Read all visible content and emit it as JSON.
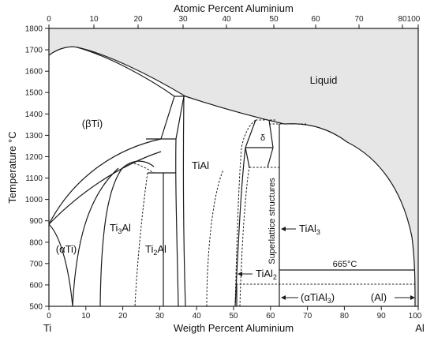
{
  "top_axis": {
    "title": "Atomic Percent Aluminium",
    "ticks": [
      "0",
      "10",
      "20",
      "30",
      "40",
      "50",
      "60",
      "70",
      "80",
      "90",
      "100"
    ]
  },
  "bottom_axis": {
    "title": "Weigth Percent Aluminium",
    "ticks": [
      "0",
      "10",
      "20",
      "30",
      "40",
      "50",
      "60",
      "70",
      "80",
      "90",
      "100"
    ],
    "end_left": "Ti",
    "end_right": "Al"
  },
  "left_axis": {
    "title": "Temperature °C",
    "ticks": [
      "500",
      "600",
      "700",
      "800",
      "900",
      "1000",
      "1100",
      "1200",
      "1300",
      "1400",
      "1500",
      "1600",
      "1700",
      "1800"
    ]
  },
  "labels": {
    "liquid": "Liquid",
    "beta_ti": "(βTi)",
    "alpha_ti": "(αTi)",
    "ti3al_main": "Ti",
    "ti3al_sub": "3",
    "ti3al_tail": "Al",
    "ti2al_main": "Ti",
    "ti2al_sub": "2",
    "ti2al_tail": "Al",
    "tial": "TiAl",
    "delta": "δ",
    "superlattice": "Superlattice structures",
    "tial3_main": "TiAl",
    "tial3_sub": "3",
    "tial2_main": "TiAl",
    "tial2_sub": "2",
    "alpha_tial3_main": "(αTiAl",
    "alpha_tial3_sub": "3",
    "alpha_tial3_tail": ")",
    "al_phase": "(Al)",
    "temp_665": "665°C"
  },
  "colors": {
    "liquid_fill": "#e6e6e6",
    "line": "#1a1a1a"
  }
}
